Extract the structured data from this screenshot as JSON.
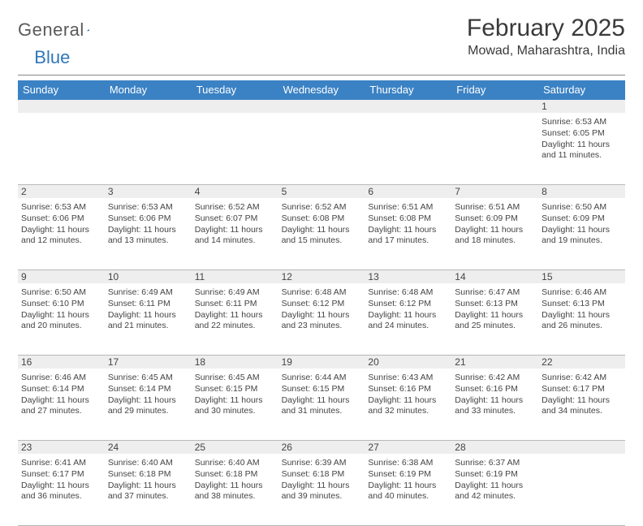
{
  "logo": {
    "text_general": "General",
    "text_blue": "Blue",
    "accent_color": "#2f77bb"
  },
  "header": {
    "month_title": "February 2025",
    "location": "Mowad, Maharashtra, India"
  },
  "colors": {
    "header_bg": "#3b82c4",
    "header_text": "#ffffff",
    "daynum_bg": "#eeeeee",
    "rule": "#b8b8b8",
    "text": "#444444"
  },
  "weekdays": [
    "Sunday",
    "Monday",
    "Tuesday",
    "Wednesday",
    "Thursday",
    "Friday",
    "Saturday"
  ],
  "weeks": [
    [
      null,
      null,
      null,
      null,
      null,
      null,
      {
        "n": "1",
        "sunrise": "Sunrise: 6:53 AM",
        "sunset": "Sunset: 6:05 PM",
        "daylight": "Daylight: 11 hours and 11 minutes."
      }
    ],
    [
      {
        "n": "2",
        "sunrise": "Sunrise: 6:53 AM",
        "sunset": "Sunset: 6:06 PM",
        "daylight": "Daylight: 11 hours and 12 minutes."
      },
      {
        "n": "3",
        "sunrise": "Sunrise: 6:53 AM",
        "sunset": "Sunset: 6:06 PM",
        "daylight": "Daylight: 11 hours and 13 minutes."
      },
      {
        "n": "4",
        "sunrise": "Sunrise: 6:52 AM",
        "sunset": "Sunset: 6:07 PM",
        "daylight": "Daylight: 11 hours and 14 minutes."
      },
      {
        "n": "5",
        "sunrise": "Sunrise: 6:52 AM",
        "sunset": "Sunset: 6:08 PM",
        "daylight": "Daylight: 11 hours and 15 minutes."
      },
      {
        "n": "6",
        "sunrise": "Sunrise: 6:51 AM",
        "sunset": "Sunset: 6:08 PM",
        "daylight": "Daylight: 11 hours and 17 minutes."
      },
      {
        "n": "7",
        "sunrise": "Sunrise: 6:51 AM",
        "sunset": "Sunset: 6:09 PM",
        "daylight": "Daylight: 11 hours and 18 minutes."
      },
      {
        "n": "8",
        "sunrise": "Sunrise: 6:50 AM",
        "sunset": "Sunset: 6:09 PM",
        "daylight": "Daylight: 11 hours and 19 minutes."
      }
    ],
    [
      {
        "n": "9",
        "sunrise": "Sunrise: 6:50 AM",
        "sunset": "Sunset: 6:10 PM",
        "daylight": "Daylight: 11 hours and 20 minutes."
      },
      {
        "n": "10",
        "sunrise": "Sunrise: 6:49 AM",
        "sunset": "Sunset: 6:11 PM",
        "daylight": "Daylight: 11 hours and 21 minutes."
      },
      {
        "n": "11",
        "sunrise": "Sunrise: 6:49 AM",
        "sunset": "Sunset: 6:11 PM",
        "daylight": "Daylight: 11 hours and 22 minutes."
      },
      {
        "n": "12",
        "sunrise": "Sunrise: 6:48 AM",
        "sunset": "Sunset: 6:12 PM",
        "daylight": "Daylight: 11 hours and 23 minutes."
      },
      {
        "n": "13",
        "sunrise": "Sunrise: 6:48 AM",
        "sunset": "Sunset: 6:12 PM",
        "daylight": "Daylight: 11 hours and 24 minutes."
      },
      {
        "n": "14",
        "sunrise": "Sunrise: 6:47 AM",
        "sunset": "Sunset: 6:13 PM",
        "daylight": "Daylight: 11 hours and 25 minutes."
      },
      {
        "n": "15",
        "sunrise": "Sunrise: 6:46 AM",
        "sunset": "Sunset: 6:13 PM",
        "daylight": "Daylight: 11 hours and 26 minutes."
      }
    ],
    [
      {
        "n": "16",
        "sunrise": "Sunrise: 6:46 AM",
        "sunset": "Sunset: 6:14 PM",
        "daylight": "Daylight: 11 hours and 27 minutes."
      },
      {
        "n": "17",
        "sunrise": "Sunrise: 6:45 AM",
        "sunset": "Sunset: 6:14 PM",
        "daylight": "Daylight: 11 hours and 29 minutes."
      },
      {
        "n": "18",
        "sunrise": "Sunrise: 6:45 AM",
        "sunset": "Sunset: 6:15 PM",
        "daylight": "Daylight: 11 hours and 30 minutes."
      },
      {
        "n": "19",
        "sunrise": "Sunrise: 6:44 AM",
        "sunset": "Sunset: 6:15 PM",
        "daylight": "Daylight: 11 hours and 31 minutes."
      },
      {
        "n": "20",
        "sunrise": "Sunrise: 6:43 AM",
        "sunset": "Sunset: 6:16 PM",
        "daylight": "Daylight: 11 hours and 32 minutes."
      },
      {
        "n": "21",
        "sunrise": "Sunrise: 6:42 AM",
        "sunset": "Sunset: 6:16 PM",
        "daylight": "Daylight: 11 hours and 33 minutes."
      },
      {
        "n": "22",
        "sunrise": "Sunrise: 6:42 AM",
        "sunset": "Sunset: 6:17 PM",
        "daylight": "Daylight: 11 hours and 34 minutes."
      }
    ],
    [
      {
        "n": "23",
        "sunrise": "Sunrise: 6:41 AM",
        "sunset": "Sunset: 6:17 PM",
        "daylight": "Daylight: 11 hours and 36 minutes."
      },
      {
        "n": "24",
        "sunrise": "Sunrise: 6:40 AM",
        "sunset": "Sunset: 6:18 PM",
        "daylight": "Daylight: 11 hours and 37 minutes."
      },
      {
        "n": "25",
        "sunrise": "Sunrise: 6:40 AM",
        "sunset": "Sunset: 6:18 PM",
        "daylight": "Daylight: 11 hours and 38 minutes."
      },
      {
        "n": "26",
        "sunrise": "Sunrise: 6:39 AM",
        "sunset": "Sunset: 6:18 PM",
        "daylight": "Daylight: 11 hours and 39 minutes."
      },
      {
        "n": "27",
        "sunrise": "Sunrise: 6:38 AM",
        "sunset": "Sunset: 6:19 PM",
        "daylight": "Daylight: 11 hours and 40 minutes."
      },
      {
        "n": "28",
        "sunrise": "Sunrise: 6:37 AM",
        "sunset": "Sunset: 6:19 PM",
        "daylight": "Daylight: 11 hours and 42 minutes."
      },
      null
    ]
  ]
}
